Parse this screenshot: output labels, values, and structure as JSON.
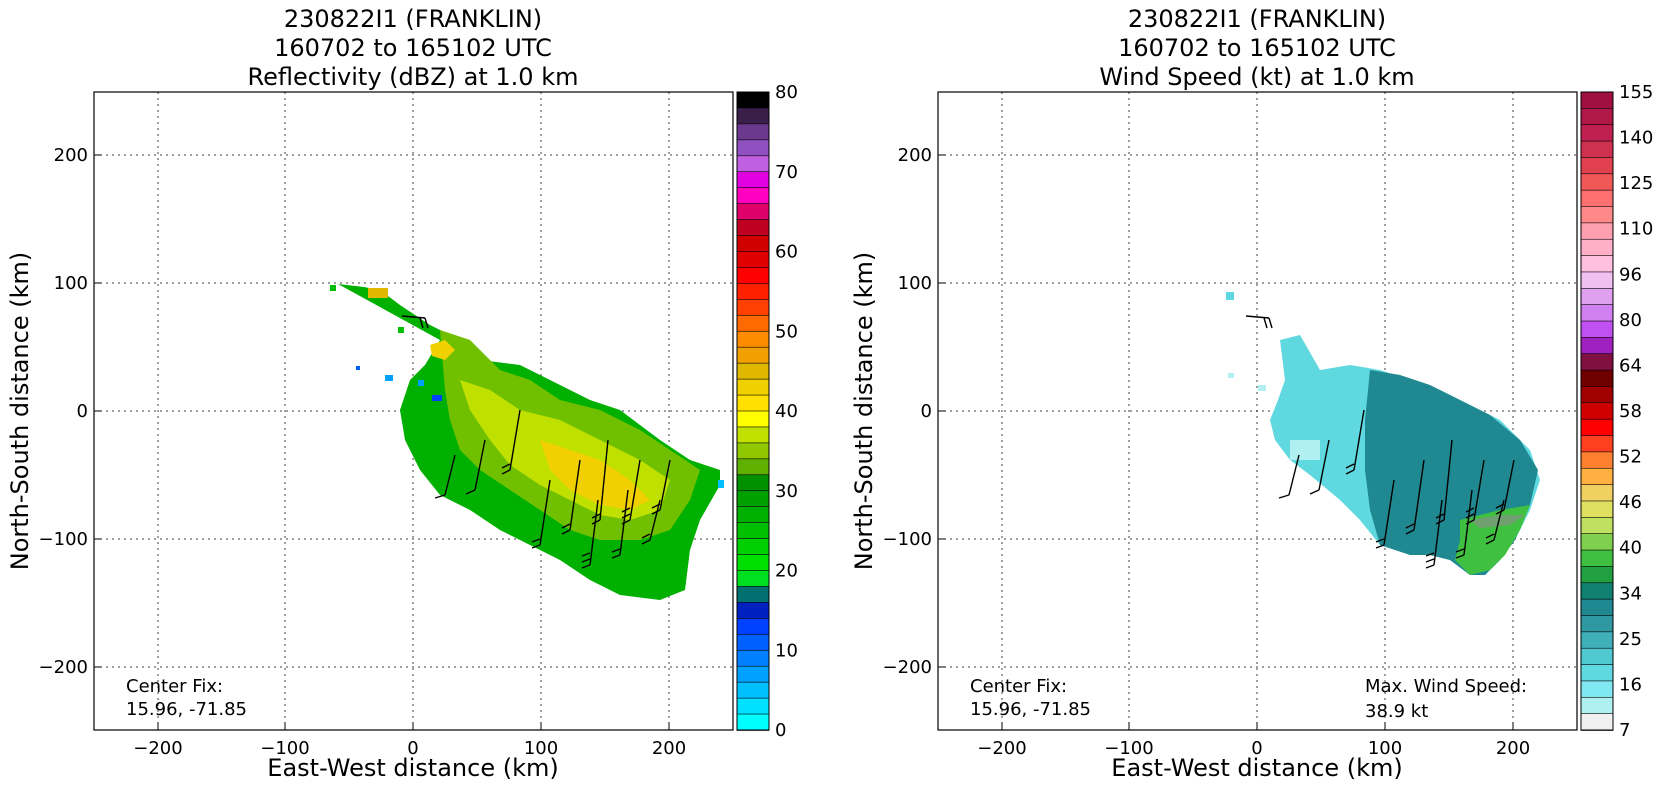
{
  "panels": [
    {
      "id": "reflectivity",
      "title_lines": [
        "230822I1 (FRANKLIN)",
        "160702 to 165102 UTC",
        "Reflectivity (dBZ) at 1.0 km"
      ],
      "xlabel": "East-West distance (km)",
      "ylabel": "North-South distance (km)",
      "xticks": [
        "−200",
        "−100",
        "0",
        "100",
        "200"
      ],
      "yticks": [
        "200",
        "100",
        "0",
        "−100",
        "−200"
      ],
      "center_fix_label": "Center Fix:",
      "center_fix_value": "15.96, -71.85",
      "colorbar": {
        "ticks": [
          "80",
          "70",
          "60",
          "50",
          "40",
          "30",
          "20",
          "10",
          "0"
        ],
        "colors": [
          "#000000",
          "#3a1f4a",
          "#6b3a8f",
          "#9050c0",
          "#c060e0",
          "#e000e0",
          "#ff00c0",
          "#e0006a",
          "#c00020",
          "#d00000",
          "#e00000",
          "#ff0000",
          "#ff2000",
          "#ff4000",
          "#ff6a00",
          "#ff8c00",
          "#f0a000",
          "#e0b800",
          "#f0d000",
          "#ffe000",
          "#ffff00",
          "#c0e000",
          "#90c800",
          "#60b000",
          "#009000",
          "#00a000",
          "#00b000",
          "#00c000",
          "#00d000",
          "#00e000",
          "#00e020",
          "#007070",
          "#0020c0",
          "#0040ff",
          "#0060ff",
          "#0080ff",
          "#00a0ff",
          "#00c0ff",
          "#00e0ff",
          "#00ffff"
        ]
      }
    },
    {
      "id": "wind",
      "title_lines": [
        "230822I1 (FRANKLIN)",
        "160702 to 165102 UTC",
        "Wind Speed (kt) at 1.0 km"
      ],
      "xlabel": "East-West distance (km)",
      "ylabel": "North-South distance (km)",
      "xticks": [
        "−200",
        "−100",
        "0",
        "100",
        "200"
      ],
      "yticks": [
        "200",
        "100",
        "0",
        "−100",
        "−200"
      ],
      "center_fix_label": "Center Fix:",
      "center_fix_value": "15.96, -71.85",
      "max_wind_label": "Max. Wind Speed:",
      "max_wind_value": "38.9 kt",
      "colorbar": {
        "ticks": [
          "155",
          "140",
          "125",
          "110",
          "96",
          "80",
          "64",
          "58",
          "52",
          "46",
          "40",
          "34",
          "25",
          "16",
          "7"
        ],
        "colors": [
          "#a01040",
          "#b01848",
          "#c02050",
          "#d03050",
          "#e04050",
          "#f05858",
          "#ff7070",
          "#ff8888",
          "#ffa0b0",
          "#ffb0c8",
          "#ffc0e0",
          "#f0c0f0",
          "#e0a0f0",
          "#d080f0",
          "#c050f0",
          "#a020c0",
          "#801040",
          "#700000",
          "#a00000",
          "#d00000",
          "#ff0000",
          "#ff4020",
          "#ff8030",
          "#ffb040",
          "#f0d060",
          "#e0e060",
          "#c0e060",
          "#80d050",
          "#40c040",
          "#20a040",
          "#108070",
          "#208890",
          "#3098a0",
          "#40b0b8",
          "#50c8d0",
          "#60d8e0",
          "#80e8f0",
          "#b0f0f0",
          "#f0f0f0"
        ]
      }
    }
  ],
  "chart_data": [
    {
      "type": "heatmap",
      "title": "230822I1 (FRANKLIN) 160702 to 165102 UTC Reflectivity (dBZ) at 1.0 km",
      "xlabel": "East-West distance (km)",
      "ylabel": "North-South distance (km)",
      "xlim": [
        -250,
        250
      ],
      "ylim": [
        -250,
        250
      ],
      "grid": true,
      "colorbar_range": [
        0,
        80
      ],
      "colorbar_units": "dBZ",
      "echo_region_km": [
        [
          -60,
          98
        ],
        [
          -30,
          95
        ],
        [
          0,
          75
        ],
        [
          30,
          60
        ],
        [
          70,
          40
        ],
        [
          100,
          30
        ],
        [
          140,
          10
        ],
        [
          180,
          -10
        ],
        [
          240,
          -45
        ],
        [
          240,
          -70
        ],
        [
          225,
          -95
        ],
        [
          210,
          -140
        ],
        [
          160,
          -140
        ],
        [
          100,
          -115
        ],
        [
          60,
          -90
        ],
        [
          20,
          -70
        ],
        [
          -5,
          -30
        ],
        [
          -10,
          20
        ],
        [
          -15,
          60
        ]
      ],
      "max_reflectivity_dbz": 40
    },
    {
      "type": "heatmap",
      "title": "230822I1 (FRANKLIN) 160702 to 165102 UTC Wind Speed (kt) at 1.0 km",
      "xlabel": "East-West distance (km)",
      "ylabel": "North-South distance (km)",
      "xlim": [
        -250,
        250
      ],
      "ylim": [
        -250,
        250
      ],
      "grid": true,
      "colorbar_range": [
        0,
        160
      ],
      "colorbar_units": "kt",
      "wind_region_km": [
        [
          -20,
          90
        ],
        [
          0,
          75
        ],
        [
          30,
          50
        ],
        [
          80,
          35
        ],
        [
          140,
          10
        ],
        [
          200,
          -20
        ],
        [
          220,
          -40
        ],
        [
          215,
          -80
        ],
        [
          200,
          -110
        ],
        [
          185,
          -125
        ],
        [
          150,
          -115
        ],
        [
          120,
          -100
        ],
        [
          90,
          -80
        ],
        [
          40,
          -60
        ],
        [
          10,
          -30
        ],
        [
          15,
          20
        ],
        [
          20,
          40
        ]
      ],
      "max_wind_speed_kt": 38.9
    }
  ]
}
